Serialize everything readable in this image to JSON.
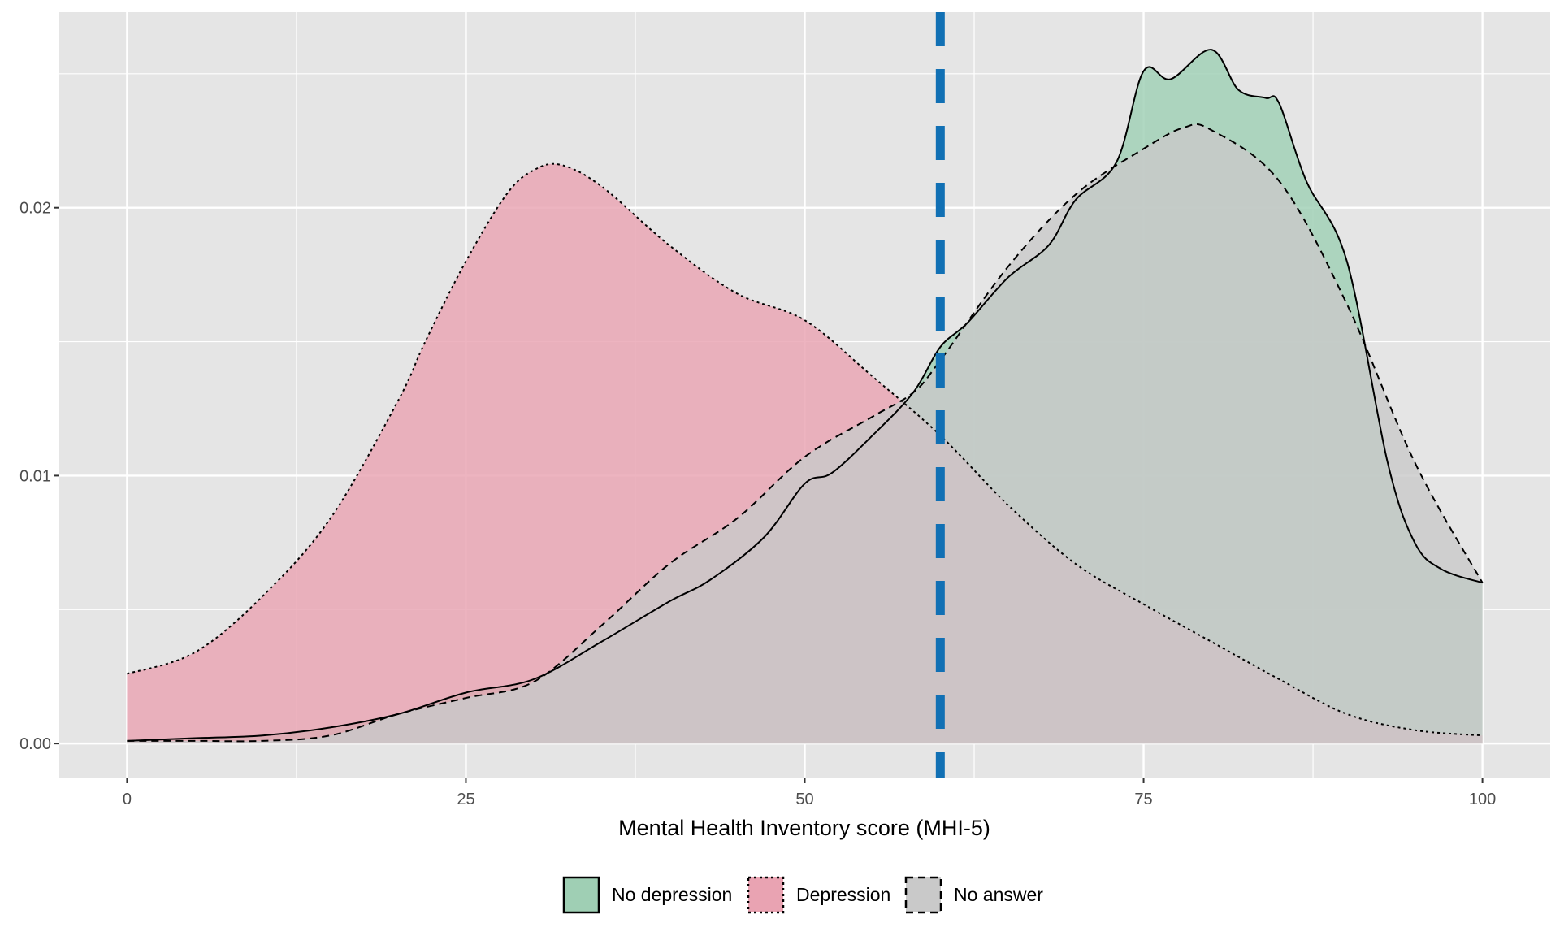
{
  "chart_data": {
    "type": "area",
    "title": "",
    "xlabel": "Mental Health Inventory score (MHI-5)",
    "ylabel": "",
    "xlim": [
      -5,
      105
    ],
    "ylim": [
      -0.0013,
      0.0273
    ],
    "x_ticks": [
      0,
      25,
      50,
      75,
      100
    ],
    "x_tick_labels": [
      "0",
      "25",
      "50",
      "75",
      "100"
    ],
    "y_ticks": [
      0.0,
      0.01,
      0.02
    ],
    "y_tick_labels": [
      "0.00",
      "0.01",
      "0.02"
    ],
    "grid": true,
    "legend_position": "bottom",
    "reference_line": {
      "x": 60,
      "color": "#1170b4",
      "style": "dashed"
    },
    "colors": {
      "panel_background": "#e5e5e5",
      "grid": "#ffffff",
      "no_depression": "#9fcfb4",
      "depression": "#e9a3b2",
      "no_answer": "#c9c9c9"
    },
    "series": [
      {
        "name": "No depression",
        "line_style": "solid",
        "x": [
          0,
          5,
          10,
          15,
          20,
          25,
          30,
          35,
          40,
          43,
          47,
          50,
          52,
          55,
          58,
          60,
          62,
          65,
          68,
          70,
          73,
          75,
          77,
          80,
          82,
          84,
          85,
          87,
          90,
          93,
          95,
          97,
          100
        ],
        "y": [
          0.0001,
          0.0002,
          0.0003,
          0.0006,
          0.0011,
          0.0019,
          0.0024,
          0.0038,
          0.0053,
          0.0061,
          0.0077,
          0.0097,
          0.0101,
          0.0115,
          0.0131,
          0.0148,
          0.0157,
          0.0174,
          0.0186,
          0.0203,
          0.0217,
          0.0251,
          0.0248,
          0.0259,
          0.0244,
          0.0241,
          0.0239,
          0.021,
          0.018,
          0.0105,
          0.0075,
          0.0065,
          0.006
        ]
      },
      {
        "name": "Depression",
        "line_style": "dotted",
        "x": [
          0,
          5,
          10,
          15,
          20,
          22,
          25,
          28,
          30,
          32,
          35,
          40,
          45,
          50,
          55,
          60,
          65,
          70,
          75,
          80,
          85,
          90,
          95,
          100
        ],
        "y": [
          0.0026,
          0.0034,
          0.0055,
          0.0084,
          0.0128,
          0.015,
          0.018,
          0.0205,
          0.0214,
          0.0216,
          0.0208,
          0.0186,
          0.0168,
          0.0158,
          0.0137,
          0.0115,
          0.0089,
          0.0067,
          0.0052,
          0.0038,
          0.0024,
          0.0011,
          0.0005,
          0.0003
        ]
      },
      {
        "name": "No answer",
        "line_style": "dashed",
        "x": [
          0,
          5,
          10,
          15,
          20,
          25,
          30,
          35,
          40,
          45,
          50,
          55,
          58,
          60,
          65,
          70,
          75,
          78,
          80,
          85,
          90,
          95,
          100
        ],
        "y": [
          0.0001,
          0.0001,
          0.0001,
          0.0003,
          0.0011,
          0.0017,
          0.0023,
          0.0044,
          0.0067,
          0.0084,
          0.0107,
          0.0122,
          0.0131,
          0.0143,
          0.0178,
          0.0205,
          0.0222,
          0.023,
          0.0229,
          0.021,
          0.0164,
          0.0105,
          0.006
        ]
      }
    ]
  }
}
